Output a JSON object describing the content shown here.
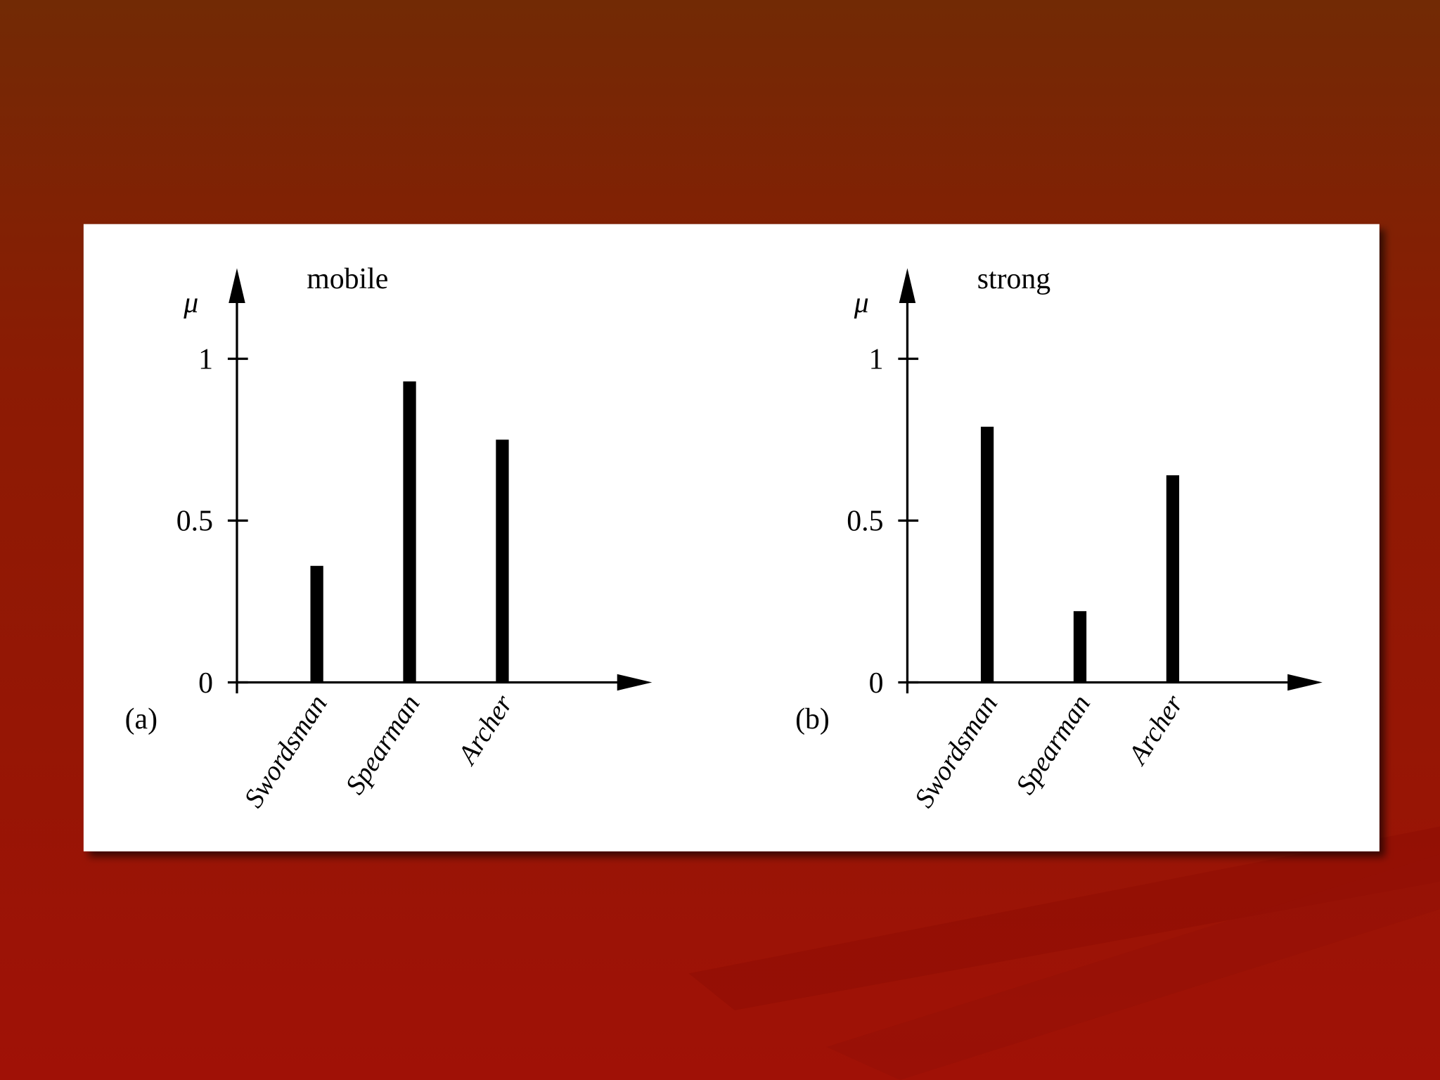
{
  "chart_data": [
    {
      "type": "bar",
      "title": "mobile",
      "ylabel": "μ",
      "panel_label": "(a)",
      "categories": [
        "Swordsman",
        "Spearman",
        "Archer"
      ],
      "values": [
        0.36,
        0.93,
        0.75
      ],
      "color": "#000000",
      "ylim": [
        0,
        1.28
      ],
      "yticks": [
        0,
        0.5,
        1
      ],
      "grid": false
    },
    {
      "type": "bar",
      "title": "strong",
      "ylabel": "μ",
      "panel_label": "(b)",
      "categories": [
        "Swordsman",
        "Spearman",
        "Archer"
      ],
      "values": [
        0.79,
        0.22,
        0.64
      ],
      "color": "#000000",
      "ylim": [
        0,
        1.28
      ],
      "yticks": [
        0,
        0.5,
        1
      ],
      "grid": false
    }
  ]
}
